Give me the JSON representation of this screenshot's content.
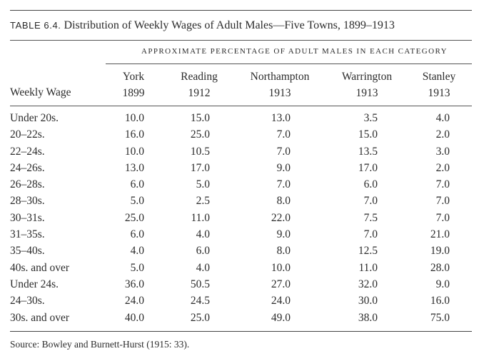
{
  "table": {
    "label": "TABLE 6.4.",
    "title": "Distribution of Weekly Wages of Adult Males—Five Towns, 1899–1913",
    "spanner": "APPROXIMATE PERCENTAGE OF ADULT MALES IN EACH CATEGORY",
    "row_header": "Weekly Wage",
    "columns": [
      {
        "town": "York",
        "year": "1899"
      },
      {
        "town": "Reading",
        "year": "1912"
      },
      {
        "town": "Northampton",
        "year": "1913"
      },
      {
        "town": "Warrington",
        "year": "1913"
      },
      {
        "town": "Stanley",
        "year": "1913"
      }
    ],
    "rows": [
      {
        "wage": "Under 20s.",
        "values": [
          "10.0",
          "15.0",
          "13.0",
          "3.5",
          "4.0"
        ]
      },
      {
        "wage": "20–22s.",
        "values": [
          "16.0",
          "25.0",
          "7.0",
          "15.0",
          "2.0"
        ]
      },
      {
        "wage": "22–24s.",
        "values": [
          "10.0",
          "10.5",
          "7.0",
          "13.5",
          "3.0"
        ]
      },
      {
        "wage": "24–26s.",
        "values": [
          "13.0",
          "17.0",
          "9.0",
          "17.0",
          "2.0"
        ]
      },
      {
        "wage": "26–28s.",
        "values": [
          "6.0",
          "5.0",
          "7.0",
          "6.0",
          "7.0"
        ]
      },
      {
        "wage": "28–30s.",
        "values": [
          "5.0",
          "2.5",
          "8.0",
          "7.0",
          "7.0"
        ]
      },
      {
        "wage": "30–31s.",
        "values": [
          "25.0",
          "11.0",
          "22.0",
          "7.5",
          "7.0"
        ]
      },
      {
        "wage": "31–35s.",
        "values": [
          "6.0",
          "4.0",
          "9.0",
          "7.0",
          "21.0"
        ]
      },
      {
        "wage": "35–40s.",
        "values": [
          "4.0",
          "6.0",
          "8.0",
          "12.5",
          "19.0"
        ]
      },
      {
        "wage": "40s. and over",
        "values": [
          "5.0",
          "4.0",
          "10.0",
          "11.0",
          "28.0"
        ]
      },
      {
        "wage": "Under 24s.",
        "values": [
          "36.0",
          "50.5",
          "27.0",
          "32.0",
          "9.0"
        ]
      },
      {
        "wage": "24–30s.",
        "values": [
          "24.0",
          "24.5",
          "24.0",
          "30.0",
          "16.0"
        ]
      },
      {
        "wage": "30s. and over",
        "values": [
          "40.0",
          "25.0",
          "49.0",
          "38.0",
          "75.0"
        ]
      }
    ],
    "source": "Source: Bowley and Burnett-Hurst (1915: 33)."
  }
}
